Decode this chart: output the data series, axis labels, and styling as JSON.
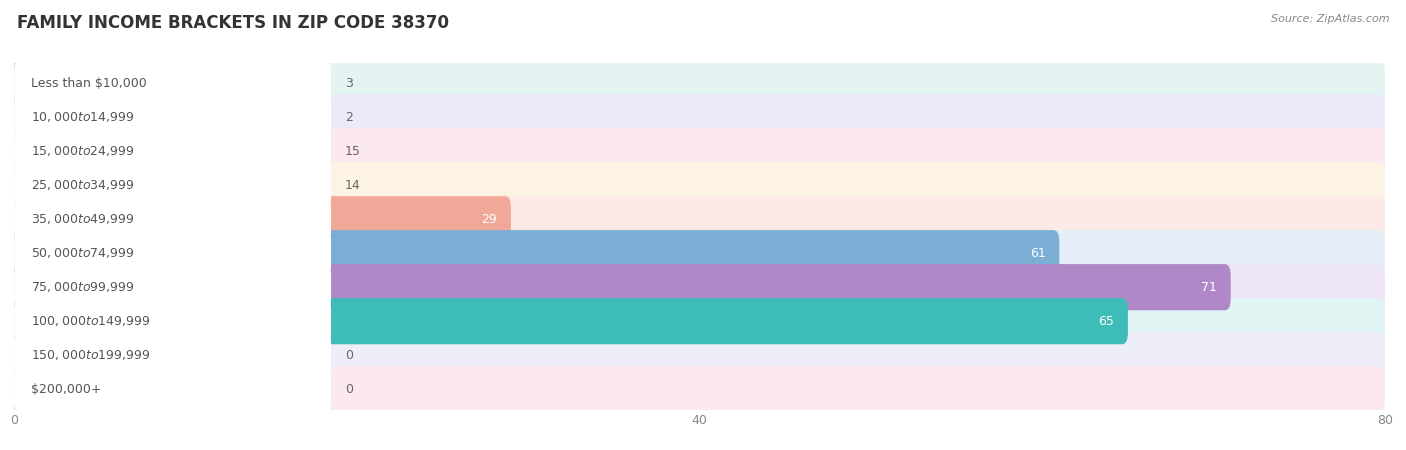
{
  "title": "FAMILY INCOME BRACKETS IN ZIP CODE 38370",
  "source": "Source: ZipAtlas.com",
  "categories": [
    "Less than $10,000",
    "$10,000 to $14,999",
    "$15,000 to $24,999",
    "$25,000 to $34,999",
    "$35,000 to $49,999",
    "$50,000 to $74,999",
    "$75,000 to $99,999",
    "$100,000 to $149,999",
    "$150,000 to $199,999",
    "$200,000+"
  ],
  "values": [
    3,
    2,
    15,
    14,
    29,
    61,
    71,
    65,
    0,
    0
  ],
  "bar_colors": [
    "#6dcdc8",
    "#b3aee8",
    "#f4a8c0",
    "#f5c98a",
    "#f0a898",
    "#7baed4",
    "#b088c8",
    "#3dbcb8",
    "#b8b8e8",
    "#f5b8d0"
  ],
  "bar_bg_colors": [
    "#e4f4f3",
    "#eceaf8",
    "#fce8ef",
    "#fdf3e3",
    "#fceae6",
    "#e5eef8",
    "#ede5f5",
    "#e0f5f4",
    "#eeeef8",
    "#fce8f0"
  ],
  "xlim": [
    0,
    80
  ],
  "xticks": [
    0,
    40,
    80
  ],
  "background_color": "#ffffff",
  "row_bg_odd": "#f7f7f7",
  "row_bg_even": "#ffffff",
  "label_color": "#555555",
  "value_color_dark": "#666666",
  "value_color_light": "#ffffff",
  "title_fontsize": 12,
  "label_fontsize": 9,
  "value_fontsize": 9,
  "source_fontsize": 8
}
